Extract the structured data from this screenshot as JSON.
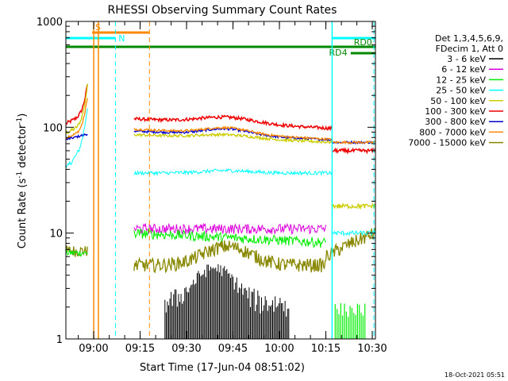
{
  "chart_data": {
    "type": "line",
    "title": "RHESSI Observing Summary Count Rates",
    "xlabel": "Start Time (17-Jun-04 08:51:02)",
    "ylabel_main": "Count Rate (s",
    "ylabel_sup1": "-1",
    "ylabel_mid": " detector",
    "ylabel_sup2": "-1",
    "ylabel_end": ")",
    "y_scale": "log",
    "ylim": [
      1,
      1000
    ],
    "xlim_minutes": [
      0,
      100
    ],
    "x_ticks": [
      {
        "label": "09:00",
        "minute": 8.97
      },
      {
        "label": "09:15",
        "minute": 23.97
      },
      {
        "label": "09:30",
        "minute": 38.97
      },
      {
        "label": "09:45",
        "minute": 53.97
      },
      {
        "label": "10:00",
        "minute": 68.97
      },
      {
        "label": "10:15",
        "minute": 83.97
      },
      {
        "label": "10:30",
        "minute": 98.97
      }
    ],
    "y_ticks": [
      {
        "label": "1",
        "value": 1
      },
      {
        "label": "10",
        "value": 10
      },
      {
        "label": "100",
        "value": 100
      },
      {
        "label": "1000",
        "value": 1000
      }
    ],
    "legend_header": [
      "Det 1,3,4,5,6,9,",
      "FDecim 1, Att 0"
    ],
    "series": [
      {
        "name": "3 - 6 keV",
        "color": "#000000"
      },
      {
        "name": "6 - 12 keV",
        "color": "#dd00dd"
      },
      {
        "name": "12 - 25 keV",
        "color": "#00ee00"
      },
      {
        "name": "25 - 50 keV",
        "color": "#00ffff"
      },
      {
        "name": "50 - 100 keV",
        "color": "#cccc00"
      },
      {
        "name": "100 - 300 keV",
        "color": "#ee0000"
      },
      {
        "name": "300 - 800 keV",
        "color": "#0000cc"
      },
      {
        "name": "800 - 7000 keV",
        "color": "#ff8800"
      },
      {
        "name": "7000 - 15000 keV",
        "color": "#888800"
      }
    ],
    "flags": [
      {
        "label": "S",
        "color": "#ff8800"
      },
      {
        "label": "N",
        "color": "#00ffff"
      },
      {
        "label": "RD0",
        "color": "#008800"
      },
      {
        "label": "RD4",
        "color": "#008800"
      }
    ],
    "footer_date": "18-Oct-2021 05:51"
  }
}
